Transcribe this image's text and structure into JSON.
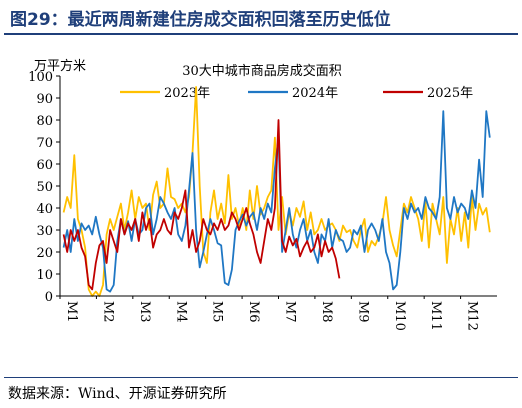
{
  "header": {
    "title": "图29：最近两周新建住房成交面积回落至历史低位"
  },
  "footer": {
    "source": "数据来源：Wind、开源证券研究所"
  },
  "colors": {
    "title": "#1f3f7a",
    "s2023": "#FFC000",
    "s2024": "#1F77C4",
    "s2025": "#C00000"
  },
  "chart_data": {
    "type": "line",
    "title": "30大中城市商品房成交面积",
    "ylabel": "万平方米",
    "xlabel": "",
    "ylim": [
      0,
      100
    ],
    "yticks": [
      "0",
      "10",
      "20",
      "30",
      "40",
      "50",
      "60",
      "70",
      "80",
      "90",
      "100"
    ],
    "categories": [
      "M1",
      "M2",
      "M3",
      "M4",
      "M5",
      "M6",
      "M7",
      "M8",
      "M9",
      "M10",
      "M11",
      "M12"
    ],
    "x_unit": "day_of_year",
    "grid": false,
    "legend": "top",
    "series": [
      {
        "name": "2023年",
        "color": "#FFC000",
        "points": [
          [
            3,
            38
          ],
          [
            6,
            45
          ],
          [
            9,
            40
          ],
          [
            12,
            64
          ],
          [
            15,
            35
          ],
          [
            18,
            30
          ],
          [
            21,
            22
          ],
          [
            24,
            3
          ],
          [
            27,
            0
          ],
          [
            30,
            2
          ],
          [
            33,
            0
          ],
          [
            36,
            5
          ],
          [
            39,
            28
          ],
          [
            42,
            35
          ],
          [
            45,
            30
          ],
          [
            48,
            36
          ],
          [
            51,
            42
          ],
          [
            54,
            30
          ],
          [
            57,
            38
          ],
          [
            60,
            48
          ],
          [
            63,
            35
          ],
          [
            66,
            45
          ],
          [
            69,
            40
          ],
          [
            72,
            42
          ],
          [
            75,
            30
          ],
          [
            78,
            46
          ],
          [
            81,
            52
          ],
          [
            84,
            40
          ],
          [
            87,
            42
          ],
          [
            90,
            58
          ],
          [
            93,
            45
          ],
          [
            96,
            44
          ],
          [
            99,
            40
          ],
          [
            102,
            42
          ],
          [
            105,
            38
          ],
          [
            108,
            45
          ],
          [
            111,
            65
          ],
          [
            114,
            95
          ],
          [
            117,
            50
          ],
          [
            120,
            20
          ],
          [
            123,
            15
          ],
          [
            126,
            38
          ],
          [
            129,
            48
          ],
          [
            132,
            35
          ],
          [
            135,
            42
          ],
          [
            138,
            33
          ],
          [
            141,
            55
          ],
          [
            144,
            35
          ],
          [
            147,
            40
          ],
          [
            150,
            32
          ],
          [
            153,
            40
          ],
          [
            156,
            30
          ],
          [
            159,
            48
          ],
          [
            162,
            35
          ],
          [
            165,
            50
          ],
          [
            168,
            37
          ],
          [
            171,
            40
          ],
          [
            174,
            45
          ],
          [
            177,
            48
          ],
          [
            180,
            72
          ],
          [
            183,
            30
          ],
          [
            186,
            45
          ],
          [
            189,
            28
          ],
          [
            192,
            38
          ],
          [
            195,
            32
          ],
          [
            198,
            40
          ],
          [
            201,
            36
          ],
          [
            204,
            43
          ],
          [
            207,
            30
          ],
          [
            210,
            38
          ],
          [
            213,
            28
          ],
          [
            216,
            30
          ],
          [
            219,
            35
          ],
          [
            222,
            30
          ],
          [
            225,
            32
          ],
          [
            228,
            33
          ],
          [
            231,
            30
          ],
          [
            234,
            25
          ],
          [
            237,
            32
          ],
          [
            240,
            29
          ],
          [
            243,
            30
          ],
          [
            246,
            25
          ],
          [
            249,
            22
          ],
          [
            252,
            30
          ],
          [
            255,
            35
          ],
          [
            258,
            20
          ],
          [
            261,
            25
          ],
          [
            264,
            23
          ],
          [
            267,
            27
          ],
          [
            270,
            33
          ],
          [
            273,
            45
          ],
          [
            276,
            30
          ],
          [
            279,
            23
          ],
          [
            282,
            18
          ],
          [
            285,
            30
          ],
          [
            288,
            42
          ],
          [
            291,
            38
          ],
          [
            294,
            45
          ],
          [
            297,
            40
          ],
          [
            300,
            35
          ],
          [
            303,
            25
          ],
          [
            306,
            43
          ],
          [
            309,
            22
          ],
          [
            312,
            42
          ],
          [
            315,
            35
          ],
          [
            318,
            28
          ],
          [
            321,
            45
          ],
          [
            324,
            15
          ],
          [
            327,
            35
          ],
          [
            330,
            28
          ],
          [
            333,
            40
          ],
          [
            336,
            25
          ],
          [
            339,
            38
          ],
          [
            342,
            22
          ],
          [
            345,
            45
          ],
          [
            348,
            30
          ],
          [
            351,
            42
          ],
          [
            354,
            37
          ],
          [
            357,
            40
          ],
          [
            360,
            29
          ]
        ]
      },
      {
        "name": "2024年",
        "color": "#1F77C4",
        "points": [
          [
            3,
            22
          ],
          [
            6,
            30
          ],
          [
            9,
            20
          ],
          [
            12,
            35
          ],
          [
            15,
            25
          ],
          [
            18,
            33
          ],
          [
            21,
            30
          ],
          [
            24,
            32
          ],
          [
            27,
            28
          ],
          [
            30,
            36
          ],
          [
            33,
            28
          ],
          [
            36,
            22
          ],
          [
            39,
            3
          ],
          [
            42,
            2
          ],
          [
            45,
            5
          ],
          [
            48,
            25
          ],
          [
            51,
            35
          ],
          [
            54,
            28
          ],
          [
            57,
            34
          ],
          [
            60,
            25
          ],
          [
            63,
            35
          ],
          [
            66,
            28
          ],
          [
            69,
            30
          ],
          [
            72,
            40
          ],
          [
            75,
            42
          ],
          [
            78,
            28
          ],
          [
            81,
            35
          ],
          [
            84,
            45
          ],
          [
            87,
            42
          ],
          [
            90,
            38
          ],
          [
            93,
            35
          ],
          [
            96,
            40
          ],
          [
            99,
            28
          ],
          [
            102,
            25
          ],
          [
            105,
            32
          ],
          [
            108,
            48
          ],
          [
            111,
            65
          ],
          [
            114,
            30
          ],
          [
            117,
            13
          ],
          [
            120,
            20
          ],
          [
            123,
            28
          ],
          [
            126,
            35
          ],
          [
            129,
            30
          ],
          [
            132,
            24
          ],
          [
            135,
            23
          ],
          [
            138,
            6
          ],
          [
            141,
            5
          ],
          [
            144,
            12
          ],
          [
            147,
            30
          ],
          [
            150,
            34
          ],
          [
            153,
            37
          ],
          [
            156,
            32
          ],
          [
            159,
            36
          ],
          [
            162,
            38
          ],
          [
            165,
            30
          ],
          [
            168,
            40
          ],
          [
            171,
            35
          ],
          [
            174,
            42
          ],
          [
            177,
            38
          ],
          [
            180,
            58
          ],
          [
            183,
            72
          ],
          [
            186,
            20
          ],
          [
            189,
            30
          ],
          [
            192,
            40
          ],
          [
            195,
            28
          ],
          [
            198,
            22
          ],
          [
            201,
            30
          ],
          [
            204,
            35
          ],
          [
            207,
            25
          ],
          [
            210,
            30
          ],
          [
            213,
            20
          ],
          [
            216,
            15
          ],
          [
            219,
            28
          ],
          [
            222,
            25
          ],
          [
            225,
            35
          ],
          [
            228,
            22
          ],
          [
            231,
            30
          ],
          [
            234,
            26
          ],
          [
            237,
            25
          ],
          [
            240,
            20
          ],
          [
            243,
            22
          ],
          [
            246,
            30
          ],
          [
            249,
            28
          ],
          [
            252,
            32
          ],
          [
            255,
            20
          ],
          [
            258,
            30
          ],
          [
            261,
            33
          ],
          [
            264,
            30
          ],
          [
            267,
            25
          ],
          [
            270,
            35
          ],
          [
            273,
            20
          ],
          [
            276,
            15
          ],
          [
            279,
            3
          ],
          [
            282,
            5
          ],
          [
            285,
            20
          ],
          [
            288,
            40
          ],
          [
            291,
            35
          ],
          [
            294,
            42
          ],
          [
            297,
            38
          ],
          [
            300,
            40
          ],
          [
            303,
            35
          ],
          [
            306,
            45
          ],
          [
            309,
            40
          ],
          [
            312,
            38
          ],
          [
            315,
            35
          ],
          [
            318,
            45
          ],
          [
            321,
            84
          ],
          [
            324,
            40
          ],
          [
            327,
            35
          ],
          [
            330,
            45
          ],
          [
            333,
            38
          ],
          [
            336,
            42
          ],
          [
            339,
            40
          ],
          [
            342,
            35
          ],
          [
            345,
            48
          ],
          [
            348,
            40
          ],
          [
            351,
            62
          ],
          [
            354,
            45
          ],
          [
            357,
            84
          ],
          [
            360,
            72
          ]
        ]
      },
      {
        "name": "2025年",
        "color": "#C00000",
        "points": [
          [
            3,
            28
          ],
          [
            6,
            20
          ],
          [
            9,
            30
          ],
          [
            12,
            25
          ],
          [
            15,
            30
          ],
          [
            18,
            22
          ],
          [
            21,
            18
          ],
          [
            24,
            5
          ],
          [
            27,
            3
          ],
          [
            30,
            15
          ],
          [
            33,
            23
          ],
          [
            36,
            25
          ],
          [
            39,
            15
          ],
          [
            42,
            30
          ],
          [
            45,
            25
          ],
          [
            48,
            20
          ],
          [
            51,
            35
          ],
          [
            54,
            28
          ],
          [
            57,
            33
          ],
          [
            60,
            30
          ],
          [
            63,
            35
          ],
          [
            66,
            25
          ],
          [
            69,
            38
          ],
          [
            72,
            30
          ],
          [
            75,
            35
          ],
          [
            78,
            22
          ],
          [
            81,
            28
          ],
          [
            84,
            30
          ],
          [
            87,
            35
          ],
          [
            90,
            30
          ],
          [
            93,
            28
          ],
          [
            96,
            38
          ],
          [
            99,
            35
          ],
          [
            102,
            40
          ],
          [
            105,
            48
          ],
          [
            108,
            22
          ],
          [
            111,
            30
          ],
          [
            114,
            20
          ],
          [
            117,
            25
          ],
          [
            120,
            35
          ],
          [
            123,
            30
          ],
          [
            126,
            28
          ],
          [
            129,
            33
          ],
          [
            132,
            30
          ],
          [
            135,
            35
          ],
          [
            138,
            30
          ],
          [
            141,
            32
          ],
          [
            144,
            38
          ],
          [
            147,
            35
          ],
          [
            150,
            30
          ],
          [
            153,
            35
          ],
          [
            156,
            40
          ],
          [
            159,
            33
          ],
          [
            162,
            28
          ],
          [
            165,
            20
          ],
          [
            168,
            15
          ],
          [
            171,
            25
          ],
          [
            174,
            35
          ],
          [
            177,
            30
          ],
          [
            180,
            40
          ],
          [
            183,
            80
          ],
          [
            186,
            25
          ],
          [
            189,
            20
          ],
          [
            192,
            27
          ],
          [
            195,
            23
          ],
          [
            198,
            26
          ],
          [
            201,
            18
          ],
          [
            204,
            22
          ],
          [
            207,
            25
          ],
          [
            210,
            20
          ],
          [
            213,
            22
          ],
          [
            216,
            28
          ],
          [
            219,
            18
          ],
          [
            222,
            25
          ],
          [
            225,
            20
          ],
          [
            228,
            22
          ],
          [
            231,
            17
          ],
          [
            234,
            8
          ]
        ]
      }
    ]
  }
}
